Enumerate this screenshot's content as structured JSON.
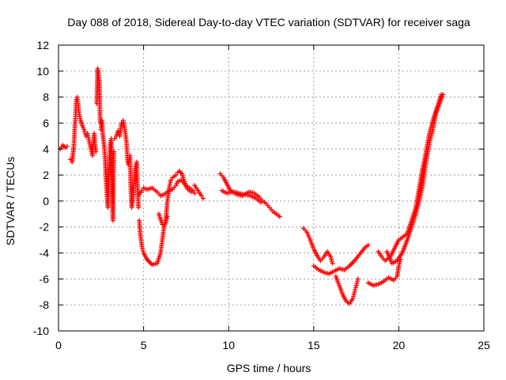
{
  "chart_data": {
    "type": "scatter",
    "title": "Day 088 of 2018, Sidereal Day-to-day VTEC variation (SDTVAR) for receiver saga",
    "xlabel": "GPS time / hours",
    "ylabel": "SDTVAR / TECUs",
    "xlim": [
      0,
      25
    ],
    "ylim": [
      -10,
      12
    ],
    "xticks": [
      0,
      5,
      10,
      15,
      20,
      25
    ],
    "yticks": [
      -10,
      -8,
      -6,
      -4,
      -2,
      0,
      2,
      4,
      6,
      8,
      10,
      12
    ],
    "grid": true,
    "marker": "+",
    "series_color": "#ff0000",
    "series": [
      {
        "name": "SDTVAR",
        "segments": [
          [
            [
              0.1,
              4.0
            ],
            [
              0.25,
              4.3
            ],
            [
              0.4,
              4.1
            ],
            [
              0.5,
              4.2
            ]
          ],
          [
            [
              0.7,
              3.2
            ],
            [
              0.8,
              3.0
            ],
            [
              0.9,
              4.2
            ],
            [
              0.95,
              5.5
            ],
            [
              1.0,
              6.5
            ],
            [
              1.05,
              7.8
            ],
            [
              1.1,
              8.0
            ],
            [
              1.15,
              7.5
            ],
            [
              1.2,
              6.8
            ],
            [
              1.3,
              6.2
            ],
            [
              1.4,
              5.8
            ],
            [
              1.5,
              5.5
            ],
            [
              1.6,
              5.0
            ],
            [
              1.7,
              5.2
            ],
            [
              1.8,
              4.6
            ],
            [
              1.9,
              4.0
            ],
            [
              2.0,
              3.5
            ],
            [
              2.05,
              4.5
            ],
            [
              2.1,
              5.2
            ],
            [
              2.15,
              4.2
            ],
            [
              2.2,
              3.8
            ]
          ],
          [
            [
              2.25,
              7.5
            ],
            [
              2.3,
              10.2
            ],
            [
              2.35,
              9.8
            ],
            [
              2.4,
              9.3
            ],
            [
              2.45,
              6.0
            ]
          ],
          [
            [
              2.5,
              5.5
            ],
            [
              2.55,
              6.2
            ],
            [
              2.6,
              5.2
            ],
            [
              2.7,
              4.0
            ],
            [
              2.75,
              3.0
            ],
            [
              2.8,
              1.5
            ],
            [
              2.85,
              0.5
            ],
            [
              2.9,
              -0.5
            ],
            [
              2.95,
              2.0
            ],
            [
              3.0,
              3.5
            ],
            [
              3.05,
              4.5
            ],
            [
              3.1,
              4.8
            ],
            [
              3.15,
              1.0
            ],
            [
              3.2,
              -1.5
            ],
            [
              3.25,
              3.8
            ]
          ],
          [
            [
              3.3,
              4.8
            ],
            [
              3.4,
              5.0
            ],
            [
              3.5,
              5.4
            ],
            [
              3.6,
              5.0
            ],
            [
              3.7,
              6.0
            ],
            [
              3.8,
              6.2
            ],
            [
              3.9,
              5.5
            ],
            [
              4.0,
              4.5
            ],
            [
              4.05,
              3.2
            ],
            [
              4.1,
              2.8
            ],
            [
              4.2,
              3.5
            ],
            [
              4.25,
              1.0
            ],
            [
              4.3,
              -0.5
            ],
            [
              4.4,
              0.5
            ],
            [
              4.5,
              2.5
            ],
            [
              4.6,
              3.0
            ],
            [
              4.65,
              1.0
            ],
            [
              4.7,
              -0.5
            ]
          ],
          [
            [
              4.75,
              -1.5
            ],
            [
              4.8,
              -2.5
            ],
            [
              4.9,
              -3.5
            ],
            [
              5.0,
              -4.0
            ],
            [
              5.2,
              -4.5
            ],
            [
              5.5,
              -4.9
            ],
            [
              5.8,
              -4.8
            ],
            [
              6.0,
              -4.0
            ],
            [
              6.1,
              -3.0
            ],
            [
              6.2,
              -2.0
            ],
            [
              6.3,
              -1.5
            ],
            [
              6.4,
              0.0
            ],
            [
              6.5,
              1.0
            ],
            [
              6.6,
              1.6
            ],
            [
              6.7,
              1.8
            ],
            [
              6.9,
              2.0
            ],
            [
              7.0,
              2.2
            ],
            [
              7.1,
              2.3
            ],
            [
              7.25,
              2.1
            ],
            [
              7.4,
              1.5
            ],
            [
              7.5,
              1.2
            ],
            [
              7.7,
              1.0
            ],
            [
              7.9,
              0.8
            ],
            [
              8.0,
              0.6
            ]
          ],
          [
            [
              4.75,
              0.5
            ],
            [
              4.9,
              0.8
            ],
            [
              5.0,
              1.0
            ],
            [
              5.2,
              0.9
            ],
            [
              5.5,
              1.0
            ],
            [
              5.8,
              0.7
            ],
            [
              6.0,
              0.4
            ],
            [
              6.2,
              0.5
            ],
            [
              6.5,
              0.8
            ],
            [
              6.7,
              0.9
            ],
            [
              6.9,
              1.2
            ],
            [
              7.0,
              1.5
            ],
            [
              7.2,
              1.6
            ],
            [
              7.4,
              1.3
            ],
            [
              7.6,
              0.9
            ],
            [
              7.8,
              0.7
            ]
          ],
          [
            [
              5.9,
              -1.0
            ],
            [
              6.0,
              -1.4
            ],
            [
              6.1,
              -1.8
            ],
            [
              6.2,
              -2.0
            ],
            [
              6.3,
              -1.7
            ],
            [
              6.4,
              -1.2
            ]
          ],
          [
            [
              8.0,
              1.2
            ],
            [
              8.2,
              0.8
            ],
            [
              8.4,
              0.4
            ],
            [
              8.5,
              0.2
            ]
          ],
          [
            [
              9.5,
              2.1
            ],
            [
              9.7,
              1.8
            ],
            [
              9.9,
              1.3
            ],
            [
              10.1,
              0.8
            ],
            [
              10.3,
              0.7
            ],
            [
              10.6,
              0.6
            ],
            [
              10.9,
              0.5
            ],
            [
              11.2,
              0.7
            ],
            [
              11.5,
              0.6
            ],
            [
              11.8,
              0.3
            ],
            [
              12.0,
              0.0
            ],
            [
              12.2,
              -0.2
            ],
            [
              12.4,
              -0.5
            ],
            [
              12.6,
              -0.8
            ],
            [
              12.8,
              -1.0
            ],
            [
              13.0,
              -1.2
            ]
          ],
          [
            [
              9.6,
              0.8
            ],
            [
              9.9,
              0.6
            ],
            [
              10.2,
              0.7
            ],
            [
              10.5,
              0.5
            ],
            [
              10.8,
              0.4
            ],
            [
              11.0,
              0.5
            ],
            [
              11.3,
              0.4
            ],
            [
              11.6,
              0.2
            ],
            [
              11.9,
              -0.1
            ]
          ],
          [
            [
              14.4,
              -2.1
            ],
            [
              14.6,
              -2.4
            ],
            [
              14.8,
              -3.0
            ],
            [
              15.0,
              -3.7
            ],
            [
              15.2,
              -4.2
            ],
            [
              15.4,
              -4.6
            ],
            [
              15.6,
              -4.3
            ],
            [
              15.8,
              -3.9
            ],
            [
              16.0,
              -4.3
            ],
            [
              16.1,
              -4.8
            ]
          ],
          [
            [
              15.0,
              -5.0
            ],
            [
              15.3,
              -5.3
            ],
            [
              15.6,
              -5.5
            ],
            [
              15.9,
              -5.6
            ],
            [
              16.2,
              -5.4
            ],
            [
              16.5,
              -5.2
            ],
            [
              16.8,
              -5.3
            ],
            [
              17.1,
              -5.0
            ],
            [
              17.4,
              -4.6
            ],
            [
              17.7,
              -4.1
            ],
            [
              18.0,
              -3.6
            ],
            [
              18.2,
              -3.4
            ]
          ],
          [
            [
              16.3,
              -5.8
            ],
            [
              16.5,
              -6.5
            ],
            [
              16.7,
              -7.2
            ],
            [
              16.9,
              -7.7
            ],
            [
              17.1,
              -7.9
            ],
            [
              17.3,
              -7.5
            ],
            [
              17.4,
              -7.0
            ],
            [
              17.5,
              -6.5
            ],
            [
              17.6,
              -6.0
            ]
          ],
          [
            [
              18.2,
              -6.3
            ],
            [
              18.5,
              -6.5
            ],
            [
              18.8,
              -6.4
            ],
            [
              19.1,
              -6.2
            ],
            [
              19.4,
              -5.9
            ],
            [
              19.7,
              -6.1
            ],
            [
              19.9,
              -5.8
            ],
            [
              20.0,
              -5.0
            ],
            [
              20.1,
              -4.5
            ]
          ],
          [
            [
              18.8,
              -3.9
            ],
            [
              19.0,
              -4.3
            ],
            [
              19.2,
              -4.6
            ],
            [
              19.5,
              -4.3
            ],
            [
              19.8,
              -3.5
            ],
            [
              20.0,
              -3.0
            ],
            [
              20.2,
              -2.8
            ],
            [
              20.5,
              -2.5
            ],
            [
              20.7,
              -1.7
            ],
            [
              21.0,
              -0.5
            ],
            [
              21.2,
              1.0
            ],
            [
              21.4,
              2.5
            ],
            [
              21.6,
              3.8
            ],
            [
              21.8,
              5.2
            ],
            [
              22.0,
              6.2
            ],
            [
              22.2,
              7.0
            ],
            [
              22.4,
              7.8
            ],
            [
              22.5,
              8.2
            ]
          ],
          [
            [
              19.3,
              -3.9
            ],
            [
              19.6,
              -4.8
            ],
            [
              19.9,
              -4.6
            ],
            [
              20.2,
              -4.0
            ],
            [
              20.5,
              -3.0
            ],
            [
              20.8,
              -1.8
            ],
            [
              21.0,
              -1.0
            ],
            [
              21.2,
              0.0
            ],
            [
              21.4,
              1.2
            ],
            [
              21.6,
              3.0
            ],
            [
              21.8,
              4.5
            ],
            [
              22.0,
              5.5
            ],
            [
              22.2,
              6.8
            ],
            [
              22.4,
              7.5
            ],
            [
              22.6,
              8.2
            ]
          ]
        ]
      }
    ]
  }
}
